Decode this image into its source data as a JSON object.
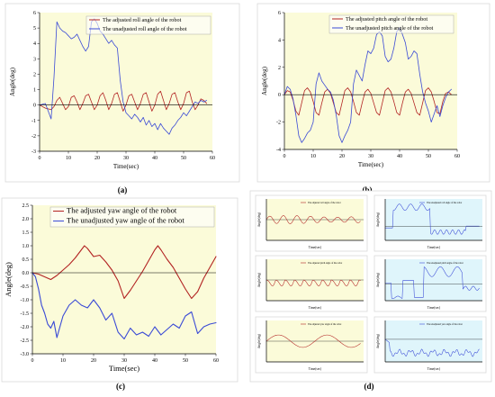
{
  "colors": {
    "adjusted": "#b22222",
    "unadjusted": "#3a4ad6",
    "plot_bg": "#fbfbd9",
    "plot_bg_blue": "#dff5fb"
  },
  "chart_data": [
    {
      "id": "a",
      "panel_label": "(a)",
      "type": "line",
      "xlabel": "Time(sec)",
      "ylabel": "Angle(deg)",
      "xlim": [
        0,
        60
      ],
      "ylim": [
        -3,
        6
      ],
      "xticks": [
        0,
        10,
        20,
        30,
        40,
        50,
        60
      ],
      "yticks": [
        -3,
        -2,
        -1,
        0,
        1,
        2,
        3,
        4,
        5,
        6
      ],
      "grid": false,
      "legend": "top",
      "series": [
        {
          "name": "The adjusted roll angle of the robot",
          "color": "#b22222",
          "x": [
            0,
            2,
            4,
            5,
            6,
            7,
            8,
            9,
            10,
            11,
            12,
            13,
            14,
            15,
            16,
            17,
            18,
            19,
            20,
            21,
            22,
            23,
            24,
            25,
            26,
            27,
            28,
            29,
            30,
            31,
            32,
            33,
            34,
            35,
            36,
            37,
            38,
            39,
            40,
            41,
            42,
            43,
            44,
            45,
            46,
            47,
            48,
            49,
            50,
            51,
            52,
            53,
            54,
            55,
            56,
            57,
            58
          ],
          "y": [
            0,
            -0.2,
            -0.3,
            -0.1,
            0.3,
            0.5,
            0.1,
            -0.3,
            -0.1,
            0.5,
            0.6,
            0.2,
            -0.3,
            0.1,
            0.6,
            0.7,
            0.2,
            -0.3,
            0.0,
            0.6,
            0.8,
            0.3,
            -0.3,
            0.1,
            0.7,
            0.8,
            0.2,
            -0.4,
            0.0,
            0.6,
            0.7,
            0.2,
            -0.3,
            0.1,
            0.7,
            0.8,
            0.2,
            -0.4,
            0.0,
            0.7,
            0.9,
            0.3,
            -0.3,
            0.1,
            0.7,
            0.8,
            0.2,
            -0.3,
            0.1,
            0.8,
            0.9,
            0.2,
            -0.3,
            0.0,
            0.4,
            0.3,
            0.1
          ]
        },
        {
          "name": "The unadjusted roll angle of the robot",
          "color": "#3a4ad6",
          "x": [
            0,
            2,
            3,
            4,
            5,
            6,
            7,
            8,
            9,
            10,
            11,
            12,
            13,
            14,
            15,
            16,
            17,
            18,
            19,
            20,
            21,
            22,
            23,
            24,
            25,
            26,
            27,
            28,
            29,
            30,
            31,
            32,
            33,
            34,
            35,
            36,
            37,
            38,
            39,
            40,
            41,
            42,
            43,
            44,
            45,
            46,
            47,
            48,
            49,
            50,
            51,
            52,
            53,
            54,
            55,
            56,
            57,
            58
          ],
          "y": [
            0,
            0.1,
            -0.4,
            -0.9,
            1.8,
            5.4,
            5.0,
            4.8,
            4.7,
            4.5,
            4.3,
            4.4,
            4.6,
            4.2,
            3.8,
            3.5,
            3.8,
            5.4,
            5.6,
            5.3,
            4.8,
            4.6,
            4.3,
            4.0,
            4.2,
            3.9,
            3.7,
            1.6,
            0.2,
            -0.5,
            -0.7,
            -0.9,
            -0.6,
            -0.8,
            -1.1,
            -0.8,
            -1.3,
            -1.0,
            -1.4,
            -1.2,
            -1.6,
            -1.2,
            -1.5,
            -1.7,
            -1.9,
            -1.5,
            -1.3,
            -1.0,
            -0.8,
            -0.5,
            -0.7,
            -0.4,
            -0.1,
            0.2,
            0.1,
            0.3,
            0.2,
            0.3
          ]
        }
      ]
    },
    {
      "id": "b",
      "panel_label": "(b)",
      "type": "line",
      "xlabel": "Time(sec)",
      "ylabel": "Angle(deg)",
      "xlim": [
        0,
        60
      ],
      "ylim": [
        -4,
        6
      ],
      "xticks": [
        0,
        10,
        20,
        30,
        40,
        50,
        60
      ],
      "yticks": [
        -4,
        -2,
        0,
        2,
        4,
        6
      ],
      "grid": false,
      "legend": "top",
      "series": [
        {
          "name": "The adjusted pitch angle of the robot",
          "color": "#b22222",
          "x": [
            0,
            1,
            2,
            3,
            4,
            5,
            6,
            7,
            8,
            9,
            10,
            11,
            12,
            13,
            14,
            15,
            16,
            17,
            18,
            19,
            20,
            21,
            22,
            23,
            24,
            25,
            26,
            27,
            28,
            29,
            30,
            31,
            32,
            33,
            34,
            35,
            36,
            37,
            38,
            39,
            40,
            41,
            42,
            43,
            44,
            45,
            46,
            47,
            48,
            49,
            50,
            51,
            52,
            53,
            54,
            55,
            56,
            57,
            58
          ],
          "y": [
            0,
            0.3,
            0.2,
            -0.4,
            -1.2,
            -1.5,
            -0.6,
            0.3,
            0.5,
            0.2,
            -0.5,
            -1.3,
            -1.5,
            -0.6,
            0.2,
            0.4,
            0.1,
            -0.6,
            -1.3,
            -1.5,
            -0.6,
            0.3,
            0.5,
            0.2,
            -0.5,
            -1.3,
            -1.5,
            -0.6,
            0.2,
            0.4,
            0.1,
            -0.6,
            -1.3,
            -1.5,
            -0.6,
            0.3,
            0.5,
            0.2,
            -0.5,
            -1.3,
            -1.5,
            -0.6,
            0.2,
            0.4,
            0.1,
            -0.6,
            -1.3,
            -1.5,
            -0.6,
            0.3,
            0.5,
            0.2,
            -0.5,
            -1.3,
            -1.4,
            -0.5,
            0.1,
            0.2,
            0.0
          ]
        },
        {
          "name": "The unadjusted pitch angle of the robot",
          "color": "#3a4ad6",
          "x": [
            0,
            1,
            2,
            3,
            4,
            5,
            6,
            7,
            8,
            9,
            10,
            11,
            12,
            13,
            14,
            15,
            16,
            17,
            18,
            19,
            20,
            21,
            22,
            23,
            24,
            25,
            26,
            27,
            28,
            29,
            30,
            31,
            32,
            33,
            34,
            35,
            36,
            37,
            38,
            39,
            40,
            41,
            42,
            43,
            44,
            45,
            46,
            47,
            48,
            49,
            50,
            51,
            52,
            53,
            54,
            55,
            56,
            57,
            58
          ],
          "y": [
            0,
            0.6,
            0.4,
            -0.3,
            -1.5,
            -3.0,
            -3.5,
            -3.2,
            -2.8,
            -2.6,
            -2.0,
            0.8,
            1.6,
            1.0,
            0.7,
            0.4,
            0.2,
            -0.4,
            -1.5,
            -3.0,
            -3.5,
            -3.0,
            -2.6,
            -2.0,
            0.8,
            1.8,
            1.4,
            1.0,
            2.2,
            3.2,
            3.0,
            3.4,
            4.4,
            4.6,
            4.3,
            2.8,
            2.4,
            2.6,
            3.4,
            4.6,
            4.9,
            4.4,
            3.8,
            2.6,
            2.8,
            3.2,
            3.0,
            1.5,
            0.2,
            -0.6,
            -1.2,
            -2.0,
            -1.4,
            -0.8,
            -1.6,
            -0.8,
            -0.2,
            0.2,
            0.4
          ]
        }
      ]
    },
    {
      "id": "c",
      "panel_label": "(c)",
      "type": "line",
      "xlabel": "Time(sec)",
      "ylabel": "Angle(deg)",
      "xlim": [
        0,
        60
      ],
      "ylim": [
        -3.0,
        2.5
      ],
      "xticks": [
        0,
        10,
        20,
        30,
        40,
        50,
        60
      ],
      "yticks": [
        -3.0,
        -2.5,
        -2.0,
        -1.5,
        -1.0,
        -0.5,
        0.0,
        0.5,
        1.0,
        1.5,
        2.0,
        2.5
      ],
      "ytick_labels": [
        "-3.0",
        "-2.5",
        "-2.0",
        "-1.5",
        "-1.0",
        "-0.5",
        "0.0",
        "0.5",
        "1.0",
        "1.5",
        "2.0",
        "2.5"
      ],
      "grid": false,
      "legend": "top",
      "series": [
        {
          "name": "The adjusted yaw angle of the robot",
          "color": "#b22222",
          "x": [
            0,
            2,
            4,
            6,
            8,
            10,
            12,
            14,
            16,
            17,
            18,
            20,
            22,
            24,
            26,
            28,
            30,
            32,
            34,
            36,
            38,
            40,
            41,
            42,
            44,
            46,
            48,
            50,
            52,
            54,
            56,
            58,
            60
          ],
          "y": [
            0,
            -0.05,
            -0.15,
            -0.25,
            -0.1,
            0.1,
            0.3,
            0.55,
            0.85,
            1.0,
            0.9,
            0.6,
            0.65,
            0.4,
            0.1,
            -0.3,
            -0.95,
            -0.65,
            -0.3,
            0.05,
            0.45,
            0.85,
            1.0,
            0.85,
            0.5,
            0.2,
            -0.2,
            -0.6,
            -0.95,
            -0.7,
            -0.2,
            0.2,
            0.6
          ]
        },
        {
          "name": "The unadjusted yaw angle of the robot",
          "color": "#3a4ad6",
          "x": [
            0,
            1,
            2,
            3,
            4,
            5,
            6,
            7,
            8,
            10,
            12,
            14,
            16,
            18,
            20,
            22,
            24,
            26,
            28,
            30,
            32,
            34,
            36,
            38,
            40,
            42,
            44,
            46,
            48,
            50,
            52,
            54,
            56,
            58,
            60
          ],
          "y": [
            0,
            -0.15,
            -0.6,
            -1.2,
            -1.5,
            -1.9,
            -2.05,
            -1.8,
            -2.4,
            -1.6,
            -1.2,
            -1.0,
            -1.2,
            -1.3,
            -1.0,
            -1.3,
            -1.75,
            -1.5,
            -2.2,
            -2.45,
            -2.05,
            -2.3,
            -2.2,
            -2.35,
            -2.0,
            -2.3,
            -2.1,
            -1.9,
            -2.05,
            -1.6,
            -1.45,
            -2.25,
            -2.0,
            -1.9,
            -1.85
          ]
        }
      ]
    }
  ],
  "small_panels": {
    "panel_label": "(d)",
    "xlabel": "Time(sec)",
    "ylabel": "Angle(deg)",
    "items": [
      {
        "id": "d1",
        "legend": "The adjusted roll angle of the robot",
        "kind": "adjusted",
        "pattern": "roll_adj"
      },
      {
        "id": "d2",
        "legend": "The unadjusted roll angle of the robot",
        "kind": "unadjusted",
        "pattern": "roll_unadj"
      },
      {
        "id": "d3",
        "legend": "The adjusted pitch angle of the robot",
        "kind": "adjusted",
        "pattern": "pitch_adj"
      },
      {
        "id": "d4",
        "legend": "The unadjusted pitch angle of the robot",
        "kind": "unadjusted",
        "pattern": "pitch_unadj"
      },
      {
        "id": "d5",
        "legend": "The adjusted yaw angle of the robot",
        "kind": "adjusted",
        "pattern": "yaw_adj"
      },
      {
        "id": "d6",
        "legend": "The unadjusted yaw angle of the robot",
        "kind": "unadjusted",
        "pattern": "yaw_unadj"
      }
    ]
  }
}
